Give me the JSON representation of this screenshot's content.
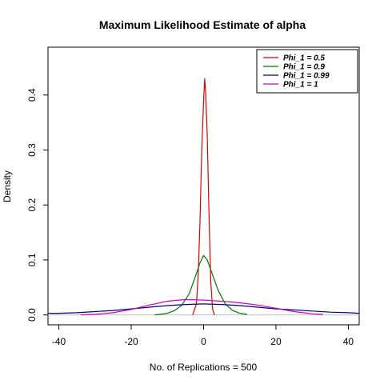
{
  "chart_data": {
    "type": "line",
    "title": "Maximum Likelihood Estimate of alpha",
    "xlabel": "No. of Replications = 500",
    "ylabel": "Density",
    "xlim": [
      -43,
      43
    ],
    "ylim": [
      -0.018,
      0.487
    ],
    "x_ticks": [
      -40,
      -20,
      0,
      20,
      40
    ],
    "y_ticks": [
      0.0,
      0.1,
      0.2,
      0.3,
      0.4
    ],
    "x_tick_labels": [
      "-40",
      "-20",
      "0",
      "20",
      "40"
    ],
    "y_tick_labels": [
      "0.0",
      "0.1",
      "0.2",
      "0.3",
      "0.4"
    ],
    "grid": false,
    "legend_position": "top-right",
    "baseline": {
      "y": 0,
      "color": "#bebebe"
    },
    "series": [
      {
        "name": "Phi_1 =  0.5",
        "color": "#dd0000",
        "x": [
          -3.0,
          -2.0,
          -1.5,
          -1.0,
          -0.5,
          0.0,
          0.3,
          0.6,
          1.0,
          1.5,
          2.0,
          2.5,
          3.0
        ],
        "y": [
          0.0,
          0.02,
          0.07,
          0.17,
          0.3,
          0.39,
          0.43,
          0.4,
          0.33,
          0.18,
          0.06,
          0.01,
          0.0
        ]
      },
      {
        "name": "Phi_1 =  0.9",
        "color": "#007700",
        "x": [
          -13.5,
          -12,
          -10,
          -8,
          -6,
          -4,
          -2,
          -1,
          0,
          1,
          2,
          4,
          6,
          8,
          10,
          12
        ],
        "y": [
          0.0,
          0.001,
          0.003,
          0.008,
          0.018,
          0.038,
          0.075,
          0.095,
          0.108,
          0.1,
          0.082,
          0.045,
          0.02,
          0.008,
          0.003,
          0.001
        ]
      },
      {
        "name": "Phi_1 =  0.99",
        "color": "#000080",
        "x": [
          -43,
          -40,
          -35,
          -30,
          -25,
          -20,
          -15,
          -10,
          -5,
          0,
          5,
          10,
          15,
          20,
          25,
          30,
          35,
          40,
          43
        ],
        "y": [
          0.003,
          0.003,
          0.004,
          0.006,
          0.008,
          0.011,
          0.014,
          0.017,
          0.019,
          0.02,
          0.019,
          0.017,
          0.014,
          0.011,
          0.009,
          0.007,
          0.005,
          0.004,
          0.003
        ]
      },
      {
        "name": "Phi_1 =  1",
        "color": "#cc00cc",
        "x": [
          -34,
          -30,
          -25,
          -20,
          -15,
          -10,
          -5,
          0,
          5,
          10,
          15,
          20,
          25,
          30,
          33
        ],
        "y": [
          0.0,
          0.001,
          0.004,
          0.01,
          0.018,
          0.025,
          0.028,
          0.027,
          0.025,
          0.022,
          0.018,
          0.012,
          0.006,
          0.002,
          0.001
        ]
      }
    ]
  }
}
